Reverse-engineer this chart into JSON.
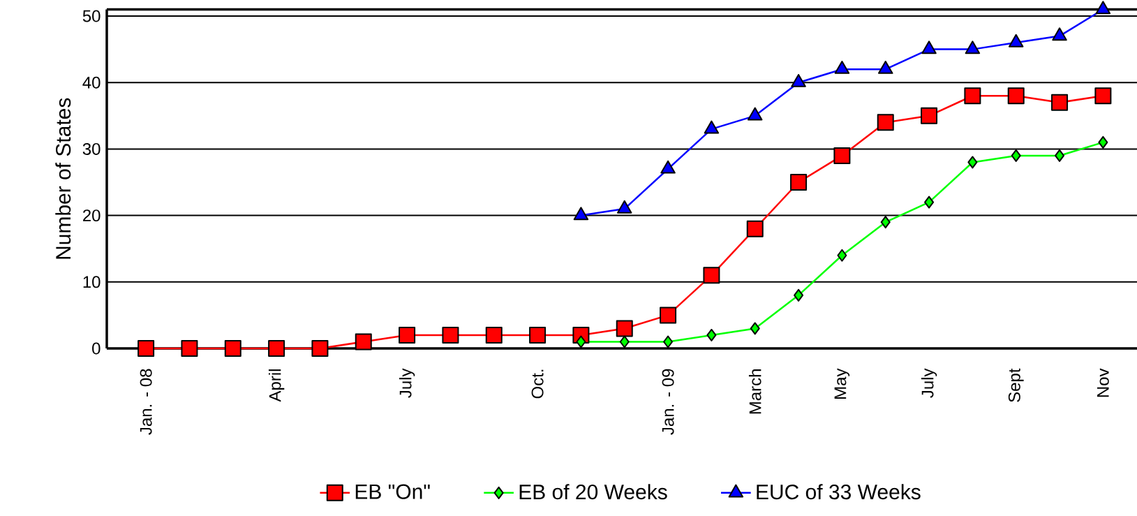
{
  "chart_data": {
    "type": "line",
    "ylabel": "Number of States",
    "categories": [
      "Jan. - 08",
      null,
      null,
      "April",
      null,
      null,
      "July",
      null,
      null,
      "Oct.",
      null,
      null,
      "Jan. - 09",
      null,
      "March",
      null,
      "May",
      null,
      "July",
      null,
      "Sept",
      null,
      "Nov"
    ],
    "ylim": [
      0,
      51
    ],
    "yticks": [
      0,
      10,
      20,
      30,
      40,
      50
    ],
    "grid": "y",
    "legend": "bottom",
    "series": [
      {
        "name": "EB \"On\"",
        "color": "#ff0000",
        "marker": "square",
        "values": [
          0,
          0,
          0,
          0,
          0,
          1,
          2,
          2,
          2,
          2,
          2,
          3,
          5,
          11,
          18,
          25,
          29,
          34,
          35,
          38,
          38,
          37,
          38
        ]
      },
      {
        "name": "EB of 20 Weeks",
        "color": "#00ff00",
        "marker": "diamond",
        "values": [
          null,
          null,
          null,
          null,
          null,
          null,
          null,
          null,
          null,
          null,
          1,
          1,
          1,
          2,
          3,
          8,
          14,
          19,
          22,
          28,
          29,
          29,
          31
        ]
      },
      {
        "name": "EUC of 33 Weeks",
        "color": "#0000ff",
        "marker": "triangle",
        "values": [
          null,
          null,
          null,
          null,
          null,
          null,
          null,
          null,
          null,
          null,
          20,
          21,
          27,
          33,
          35,
          40,
          42,
          42,
          45,
          45,
          46,
          47,
          51
        ]
      }
    ]
  }
}
